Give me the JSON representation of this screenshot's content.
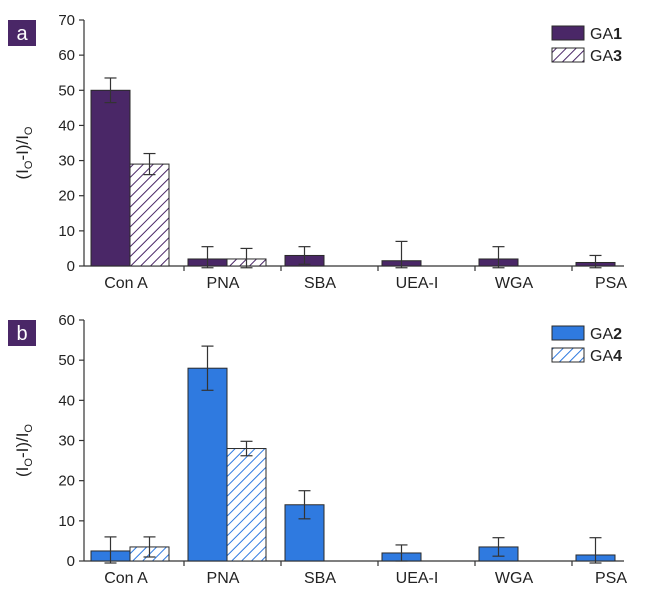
{
  "chart_data": [
    {
      "type": "bar",
      "panel_label": "a",
      "categories": [
        "Con A",
        "PNA",
        "SBA",
        "UEA-I",
        "WGA",
        "PSA"
      ],
      "series": [
        {
          "name_prefix": "GA",
          "name_number": "1",
          "values": [
            50,
            2,
            3,
            1.5,
            2,
            1
          ],
          "errors": [
            3.5,
            3.5,
            2.5,
            5.5,
            3.5,
            2
          ],
          "fill": "solid",
          "color": "#4a2767"
        },
        {
          "name_prefix": "GA",
          "name_number": "3",
          "values": [
            29,
            2,
            null,
            null,
            null,
            null
          ],
          "errors": [
            3,
            3,
            null,
            null,
            null,
            null
          ],
          "fill": "hatched",
          "color": "#4a2767"
        }
      ],
      "ylabel_main": "(I",
      "ylabel_sub": "O",
      "ylabel_mid": "-I)/I",
      "ylabel_sub2": "O",
      "ylim": [
        0,
        70
      ],
      "yticks": [
        "0",
        "10",
        "20",
        "30",
        "40",
        "50",
        "60",
        "70"
      ],
      "legend_position": "top-right",
      "grid": false
    },
    {
      "type": "bar",
      "panel_label": "b",
      "categories": [
        "Con A",
        "PNA",
        "SBA",
        "UEA-I",
        "WGA",
        "PSA"
      ],
      "series": [
        {
          "name_prefix": "GA",
          "name_number": "2",
          "values": [
            2.5,
            48,
            14,
            2,
            3.5,
            1.5
          ],
          "errors": [
            3.5,
            5.5,
            3.5,
            2,
            2.3,
            4.3
          ],
          "fill": "solid",
          "color": "#2f7ae0"
        },
        {
          "name_prefix": "GA",
          "name_number": "4",
          "values": [
            3.5,
            28,
            null,
            null,
            null,
            null
          ],
          "errors": [
            2.5,
            1.8,
            null,
            null,
            null,
            null
          ],
          "fill": "hatched",
          "color": "#2f7ae0"
        }
      ],
      "ylabel_main": "(I",
      "ylabel_sub": "O",
      "ylabel_mid": "-I)/I",
      "ylabel_sub2": "O",
      "ylim": [
        0,
        60
      ],
      "yticks": [
        "0",
        "10",
        "20",
        "30",
        "40",
        "50",
        "60"
      ],
      "legend_position": "top-right",
      "grid": false
    }
  ]
}
